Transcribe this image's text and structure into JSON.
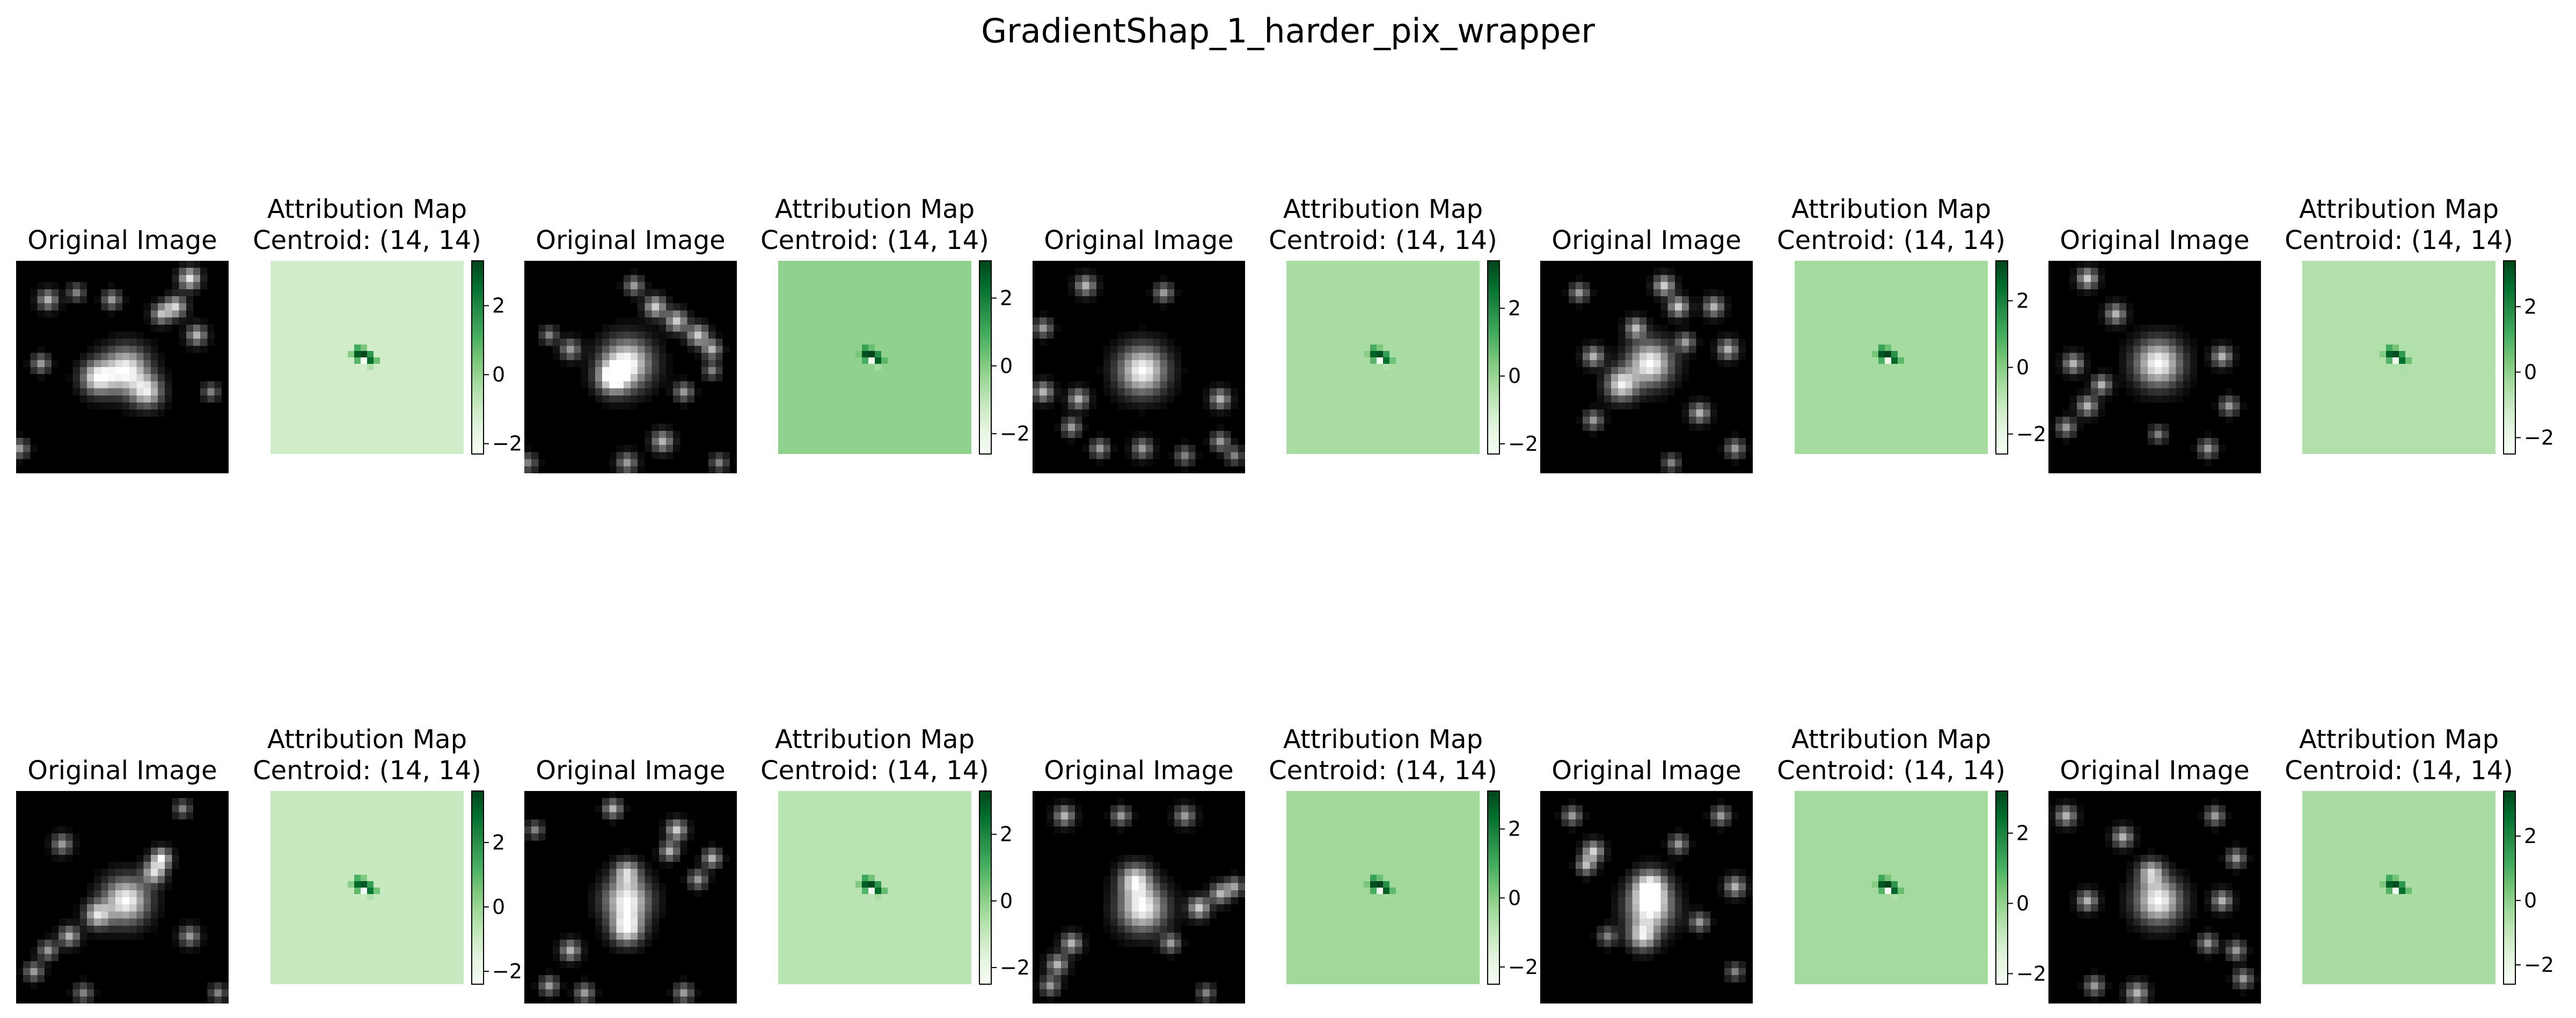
{
  "figure": {
    "suptitle": "GradientShap_1_harder_pix_wrapper",
    "orig_title": "Original Image",
    "attr_title_line1": "Attribution Map",
    "colors": {
      "orig_cmap": "gray",
      "attr_cmap": "Greens"
    }
  },
  "chart_data": {
    "type": "heatmap",
    "title": "GradientShap_1_harder_pix_wrapper",
    "layout": "2 rows x 5 pairs (Original Image, Attribution Map with colorbar)",
    "grid": false,
    "panels": [
      {
        "row": 1,
        "pair": 1,
        "centroid": "Centroid: (14, 14)",
        "colorbar_ticks": [
          "2",
          "0",
          "−2"
        ],
        "bg_value": -1.1,
        "cb_range": [
          -2.3,
          3.3
        ],
        "blobs": [
          [
            15,
            15,
            3.2,
            1
          ],
          [
            11,
            16,
            2.3,
            0.9
          ],
          [
            18,
            18,
            2.2,
            0.8
          ],
          [
            24,
            2,
            1.5,
            0.9
          ],
          [
            22,
            6,
            1.5,
            0.8
          ],
          [
            25,
            10,
            1.4,
            0.7
          ],
          [
            20,
            7,
            1.4,
            0.7
          ],
          [
            4,
            5,
            1.4,
            0.7
          ],
          [
            13,
            5,
            1.3,
            0.6
          ],
          [
            8,
            4,
            1.2,
            0.5
          ],
          [
            3,
            14,
            1.3,
            0.6
          ],
          [
            27,
            18,
            1.2,
            0.5
          ],
          [
            0,
            26,
            1.3,
            0.6
          ]
        ]
      },
      {
        "row": 1,
        "pair": 2,
        "centroid": "Centroid: (14, 14)",
        "colorbar_ticks": [
          "2",
          "0",
          "−2"
        ],
        "bg_value": -0.2,
        "cb_range": [
          -2.6,
          3.1
        ],
        "blobs": [
          [
            14,
            14,
            3.5,
            1
          ],
          [
            12,
            16,
            2.2,
            0.9
          ],
          [
            18,
            6,
            1.5,
            0.8
          ],
          [
            21,
            8,
            1.5,
            0.8
          ],
          [
            24,
            10,
            1.5,
            0.8
          ],
          [
            26,
            12,
            1.3,
            0.7
          ],
          [
            15,
            3,
            1.3,
            0.6
          ],
          [
            6,
            12,
            1.4,
            0.6
          ],
          [
            3,
            10,
            1.2,
            0.5
          ],
          [
            22,
            18,
            1.3,
            0.6
          ],
          [
            26,
            15,
            1.2,
            0.5
          ],
          [
            19,
            25,
            1.5,
            0.7
          ],
          [
            14,
            28,
            1.4,
            0.6
          ],
          [
            0,
            28,
            1.3,
            0.5
          ],
          [
            27,
            28,
            1.2,
            0.5
          ]
        ]
      },
      {
        "row": 1,
        "pair": 3,
        "centroid": "Centroid: (14, 14)",
        "colorbar_ticks": [
          "2",
          "0",
          "−2"
        ],
        "bg_value": -0.3,
        "cb_range": [
          -2.3,
          3.4
        ],
        "blobs": [
          [
            15,
            15,
            3.4,
            1
          ],
          [
            7,
            3,
            1.4,
            0.7
          ],
          [
            18,
            4,
            1.3,
            0.6
          ],
          [
            1,
            9,
            1.3,
            0.6
          ],
          [
            1,
            18,
            1.4,
            0.7
          ],
          [
            6,
            19,
            1.4,
            0.7
          ],
          [
            5,
            23,
            1.3,
            0.6
          ],
          [
            26,
            19,
            1.4,
            0.7
          ],
          [
            26,
            25,
            1.3,
            0.6
          ],
          [
            15,
            26,
            1.4,
            0.6
          ],
          [
            9,
            26,
            1.3,
            0.6
          ],
          [
            21,
            27,
            1.3,
            0.5
          ],
          [
            28,
            27,
            1.2,
            0.5
          ]
        ]
      },
      {
        "row": 1,
        "pair": 4,
        "centroid": "Centroid: (14, 14)",
        "colorbar_ticks": [
          "2",
          "0",
          "−2"
        ],
        "bg_value": -0.5,
        "cb_range": [
          -2.6,
          3.2
        ],
        "blobs": [
          [
            15,
            14,
            3.1,
            1
          ],
          [
            11,
            17,
            2.2,
            0.9
          ],
          [
            17,
            3,
            1.4,
            0.8
          ],
          [
            19,
            6,
            1.4,
            0.8
          ],
          [
            24,
            6,
            1.4,
            0.7
          ],
          [
            5,
            4,
            1.3,
            0.6
          ],
          [
            26,
            12,
            1.4,
            0.7
          ],
          [
            7,
            13,
            1.4,
            0.7
          ],
          [
            13,
            9,
            1.4,
            0.7
          ],
          [
            20,
            11,
            1.3,
            0.6
          ],
          [
            7,
            22,
            1.3,
            0.6
          ],
          [
            22,
            21,
            1.4,
            0.7
          ],
          [
            27,
            26,
            1.3,
            0.6
          ],
          [
            18,
            28,
            1.2,
            0.5
          ]
        ]
      },
      {
        "row": 1,
        "pair": 5,
        "centroid": "Centroid: (14, 14)",
        "colorbar_ticks": [
          "2",
          "0",
          "−2"
        ],
        "bg_value": -0.6,
        "cb_range": [
          -2.5,
          3.4
        ],
        "blobs": [
          [
            15,
            14,
            3.3,
            1
          ],
          [
            5,
            2,
            1.4,
            0.8
          ],
          [
            9,
            7,
            1.4,
            0.7
          ],
          [
            3,
            14,
            1.4,
            0.7
          ],
          [
            7,
            17,
            1.3,
            0.7
          ],
          [
            5,
            20,
            1.4,
            0.7
          ],
          [
            2,
            23,
            1.3,
            0.6
          ],
          [
            24,
            13,
            1.4,
            0.7
          ],
          [
            25,
            20,
            1.3,
            0.6
          ],
          [
            22,
            26,
            1.3,
            0.6
          ],
          [
            15,
            24,
            1.2,
            0.5
          ]
        ]
      },
      {
        "row": 2,
        "pair": 1,
        "centroid": "Centroid: (14, 14)",
        "colorbar_ticks": [
          "2",
          "0",
          "−2"
        ],
        "bg_value": -0.9,
        "cb_range": [
          -2.4,
          3.6
        ],
        "blobs": [
          [
            15,
            15,
            3.2,
            1
          ],
          [
            19,
            11,
            1.6,
            0.8
          ],
          [
            20,
            9,
            1.4,
            0.9
          ],
          [
            11,
            17,
            1.8,
            0.8
          ],
          [
            6,
            7,
            1.4,
            0.6
          ],
          [
            7,
            20,
            1.4,
            0.7
          ],
          [
            4,
            22,
            1.3,
            0.6
          ],
          [
            24,
            20,
            1.4,
            0.6
          ],
          [
            2,
            25,
            1.3,
            0.6
          ],
          [
            9,
            28,
            1.3,
            0.5
          ],
          [
            28,
            28,
            1.2,
            0.5
          ],
          [
            23,
            2,
            1.2,
            0.5
          ]
        ]
      },
      {
        "row": 2,
        "pair": 2,
        "centroid": "Centroid: (14, 14)",
        "colorbar_ticks": [
          "2",
          "0",
          "−2"
        ],
        "bg_value": -0.8,
        "cb_range": [
          -2.5,
          3.3
        ],
        "blobs": [
          [
            14,
            15,
            3.2,
            1
          ],
          [
            14,
            19,
            2.2,
            0.9
          ],
          [
            14,
            11,
            1.8,
            0.7
          ],
          [
            12,
            2,
            1.3,
            0.7
          ],
          [
            21,
            5,
            1.4,
            0.8
          ],
          [
            20,
            8,
            1.3,
            0.7
          ],
          [
            26,
            9,
            1.3,
            0.7
          ],
          [
            24,
            12,
            1.3,
            0.6
          ],
          [
            6,
            22,
            1.4,
            0.7
          ],
          [
            3,
            27,
            1.3,
            0.6
          ],
          [
            8,
            28,
            1.3,
            0.6
          ],
          [
            22,
            28,
            1.3,
            0.6
          ],
          [
            1,
            5,
            1.2,
            0.5
          ]
        ]
      },
      {
        "row": 2,
        "pair": 3,
        "centroid": "Centroid: (14, 14)",
        "colorbar_ticks": [
          "2",
          "0",
          "−2"
        ],
        "bg_value": -0.4,
        "cb_range": [
          -2.5,
          3.1
        ],
        "blobs": [
          [
            15,
            16,
            3.3,
            1
          ],
          [
            14,
            12,
            2.2,
            0.8
          ],
          [
            4,
            3,
            1.4,
            0.7
          ],
          [
            12,
            3,
            1.3,
            0.6
          ],
          [
            21,
            3,
            1.4,
            0.6
          ],
          [
            23,
            16,
            1.5,
            0.8
          ],
          [
            26,
            14,
            1.4,
            0.7
          ],
          [
            28,
            13,
            1.3,
            0.6
          ],
          [
            5,
            21,
            1.4,
            0.7
          ],
          [
            3,
            24,
            1.4,
            0.7
          ],
          [
            2,
            27,
            1.3,
            0.6
          ],
          [
            19,
            21,
            1.3,
            0.6
          ],
          [
            24,
            28,
            1.2,
            0.5
          ]
        ]
      },
      {
        "row": 2,
        "pair": 4,
        "centroid": "Centroid: (14, 14)",
        "colorbar_ticks": [
          "2",
          "0",
          "−2"
        ],
        "bg_value": -0.3,
        "cb_range": [
          -2.3,
          3.2
        ],
        "blobs": [
          [
            15,
            16,
            3.2,
            1
          ],
          [
            15,
            13,
            2.3,
            0.9
          ],
          [
            14,
            20,
            2.0,
            0.8
          ],
          [
            7,
            8,
            1.4,
            0.8
          ],
          [
            6,
            10,
            1.3,
            0.7
          ],
          [
            19,
            7,
            1.3,
            0.6
          ],
          [
            25,
            3,
            1.3,
            0.6
          ],
          [
            27,
            13,
            1.4,
            0.7
          ],
          [
            22,
            18,
            1.3,
            0.6
          ],
          [
            4,
            3,
            1.3,
            0.6
          ],
          [
            9,
            20,
            1.3,
            0.5
          ],
          [
            27,
            25,
            1.2,
            0.5
          ]
        ]
      },
      {
        "row": 2,
        "pair": 5,
        "centroid": "Centroid: (14, 14)",
        "colorbar_ticks": [
          "2",
          "0",
          "−2"
        ],
        "bg_value": -0.5,
        "cb_range": [
          -2.6,
          3.4
        ],
        "blobs": [
          [
            15,
            15,
            3.2,
            1
          ],
          [
            14,
            11,
            1.8,
            0.7
          ],
          [
            10,
            6,
            1.4,
            0.7
          ],
          [
            2,
            3,
            1.4,
            0.7
          ],
          [
            23,
            3,
            1.3,
            0.6
          ],
          [
            26,
            9,
            1.3,
            0.6
          ],
          [
            5,
            15,
            1.4,
            0.7
          ],
          [
            24,
            15,
            1.4,
            0.7
          ],
          [
            22,
            21,
            1.3,
            0.6
          ],
          [
            26,
            22,
            1.3,
            0.6
          ],
          [
            27,
            26,
            1.3,
            0.6
          ],
          [
            6,
            27,
            1.3,
            0.6
          ],
          [
            12,
            28,
            1.5,
            0.7
          ]
        ]
      }
    ]
  }
}
